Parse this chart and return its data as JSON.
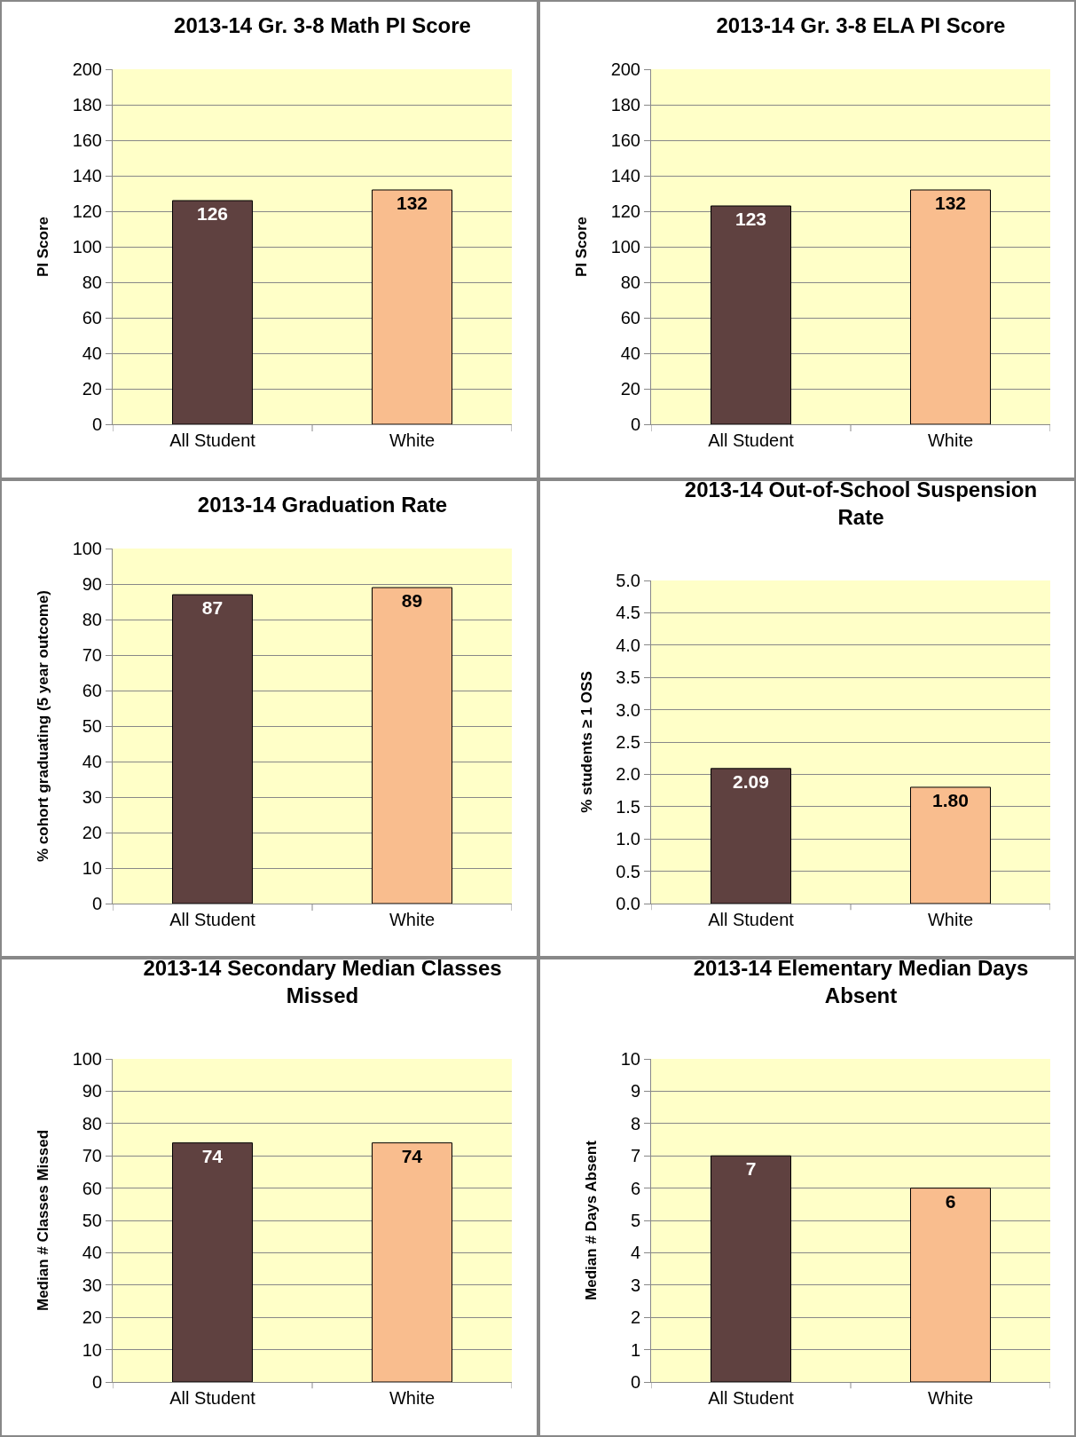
{
  "chart_data": [
    {
      "type": "bar",
      "title": "2013-14 Gr. 3-8 Math PI Score",
      "ylabel": "PI Score",
      "categories": [
        "All Student",
        "White"
      ],
      "values": [
        126,
        132
      ],
      "colors": [
        "#5f4140",
        "#f9bd8e"
      ],
      "ylim": [
        0,
        200
      ],
      "yticks": [
        0,
        20,
        40,
        60,
        80,
        100,
        120,
        140,
        160,
        180,
        200
      ],
      "grid": "y",
      "data_labels": true
    },
    {
      "type": "bar",
      "title": "2013-14 Gr. 3-8 ELA PI Score",
      "ylabel": "PI Score",
      "categories": [
        "All Student",
        "White"
      ],
      "values": [
        123,
        132
      ],
      "colors": [
        "#5f4140",
        "#f9bd8e"
      ],
      "ylim": [
        0,
        200
      ],
      "yticks": [
        0,
        20,
        40,
        60,
        80,
        100,
        120,
        140,
        160,
        180,
        200
      ],
      "grid": "y",
      "data_labels": true
    },
    {
      "type": "bar",
      "title": "2013-14 Graduation Rate",
      "ylabel": "% cohort graduating (5 year outcome)",
      "categories": [
        "All Student",
        "White"
      ],
      "values": [
        87,
        89
      ],
      "colors": [
        "#5f4140",
        "#f9bd8e"
      ],
      "ylim": [
        0,
        100
      ],
      "yticks": [
        0,
        10,
        20,
        30,
        40,
        50,
        60,
        70,
        80,
        90,
        100
      ],
      "grid": "y",
      "data_labels": true
    },
    {
      "type": "bar",
      "title": "2013-14 Out-of-School Suspension Rate",
      "ylabel": "% students ≥ 1 OSS",
      "categories": [
        "All Student",
        "White"
      ],
      "values": [
        2.09,
        1.8
      ],
      "value_labels": [
        "2.09",
        "1.80"
      ],
      "colors": [
        "#5f4140",
        "#f9bd8e"
      ],
      "ylim": [
        0,
        5
      ],
      "yticks": [
        {
          "value": 0,
          "label": "0.0"
        },
        {
          "value": 0.5,
          "label": "0.5"
        },
        {
          "value": 1,
          "label": "1.0"
        },
        {
          "value": 1.5,
          "label": "1.5"
        },
        {
          "value": 2,
          "label": "2.0"
        },
        {
          "value": 2.5,
          "label": "2.5"
        },
        {
          "value": 3,
          "label": "3.0"
        },
        {
          "value": 3.5,
          "label": "3.5"
        },
        {
          "value": 4,
          "label": "4.0"
        },
        {
          "value": 4.5,
          "label": "4.5"
        },
        {
          "value": 5,
          "label": "5.0"
        }
      ],
      "grid": "y"
    },
    {
      "type": "bar",
      "title": "2013-14 Secondary Median Classes Missed",
      "ylabel": "Median # Classes Missed",
      "categories": [
        "All Student",
        "White"
      ],
      "values": [
        74,
        74
      ],
      "colors": [
        "#5f4140",
        "#f9bd8e"
      ],
      "ylim": [
        0,
        100
      ],
      "yticks": [
        0,
        10,
        20,
        30,
        40,
        50,
        60,
        70,
        80,
        90,
        100
      ],
      "grid": "y",
      "data_labels": true
    },
    {
      "type": "bar",
      "title": "2013-14 Elementary Median Days Absent",
      "ylabel": "Median # Days Absent",
      "categories": [
        "All Student",
        "White"
      ],
      "values": [
        7,
        6
      ],
      "colors": [
        "#5f4140",
        "#f9bd8e"
      ],
      "ylim": [
        0,
        10
      ],
      "yticks": [
        0,
        1,
        2,
        3,
        4,
        5,
        6,
        7,
        8,
        9,
        10
      ],
      "grid": "y",
      "data_labels": true
    }
  ]
}
